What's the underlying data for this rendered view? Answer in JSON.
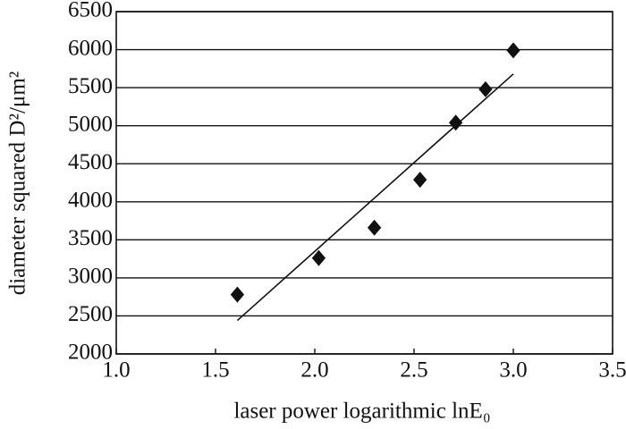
{
  "chart_data": {
    "type": "scatter",
    "x_label": "laser power logarithmic lnE₀",
    "y_label": "diameter squared D²/μm²",
    "x": [
      1.61,
      2.02,
      2.3,
      2.53,
      2.71,
      2.86,
      3.0
    ],
    "values": [
      2780,
      3260,
      3660,
      4290,
      5040,
      5480,
      5990
    ],
    "color": "#111111",
    "fit_line": {
      "x": [
        1.61,
        3.0
      ],
      "y": [
        2440,
        5680
      ]
    },
    "xlim": [
      1.0,
      3.5
    ],
    "xticks": [
      {
        "value": 1,
        "label": "1.0"
      },
      1.5,
      {
        "value": 2,
        "label": "2.0"
      },
      2.5,
      {
        "value": 3,
        "label": "3.0"
      },
      3.5
    ],
    "ylim": [
      2000,
      6500
    ],
    "yticks": [
      2000,
      2500,
      3000,
      3500,
      4000,
      4500,
      5000,
      5500,
      6000,
      6500
    ],
    "grid": true
  }
}
